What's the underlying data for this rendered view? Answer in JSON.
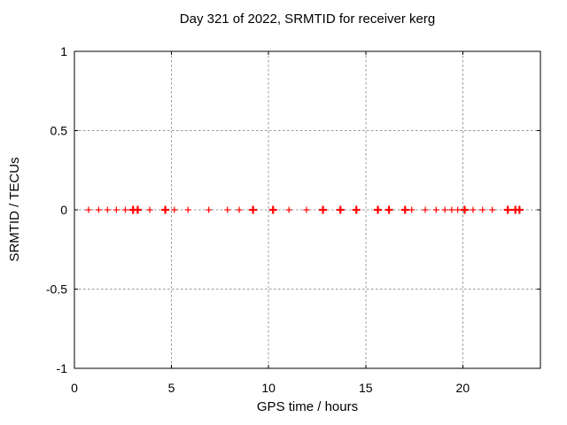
{
  "chart_data": {
    "type": "scatter",
    "title": "Day 321 of 2022, SRMTID for receiver kerg",
    "xlabel": "GPS time / hours",
    "ylabel": "SRMTID / TECUs",
    "xlim": [
      0,
      24
    ],
    "ylim": [
      -1,
      1
    ],
    "xticks": [
      0,
      5,
      10,
      15,
      20
    ],
    "xtick_labels": [
      "0",
      "5",
      "10",
      "15",
      "20"
    ],
    "yticks": [
      -1,
      -0.5,
      0,
      0.5,
      1
    ],
    "ytick_labels": [
      "-1",
      "-0.5",
      "0",
      "0.5",
      "1"
    ],
    "grid": true,
    "legend": "none",
    "marker": "plus",
    "points_format": [
      "gps_hour",
      "srmtid_tecus",
      "marker_weight"
    ],
    "points": [
      [
        0.73,
        0,
        1
      ],
      [
        1.25,
        0,
        1
      ],
      [
        1.7,
        0,
        1
      ],
      [
        2.16,
        0,
        1
      ],
      [
        2.62,
        0,
        1
      ],
      [
        3.02,
        0,
        2
      ],
      [
        3.26,
        0,
        2
      ],
      [
        3.88,
        0,
        1
      ],
      [
        4.68,
        0,
        2
      ],
      [
        5.15,
        0,
        1
      ],
      [
        5.85,
        0,
        1
      ],
      [
        6.92,
        0,
        1
      ],
      [
        7.88,
        0,
        1
      ],
      [
        8.49,
        0,
        1
      ],
      [
        9.2,
        0,
        2
      ],
      [
        10.23,
        0,
        2
      ],
      [
        11.05,
        0,
        1
      ],
      [
        11.95,
        0,
        1
      ],
      [
        12.8,
        0,
        2
      ],
      [
        13.7,
        0,
        2
      ],
      [
        14.52,
        0,
        2
      ],
      [
        15.63,
        0,
        2
      ],
      [
        16.2,
        0,
        2
      ],
      [
        17.03,
        0,
        2
      ],
      [
        17.37,
        0,
        1
      ],
      [
        18.07,
        0,
        1
      ],
      [
        18.63,
        0,
        1
      ],
      [
        19.08,
        0,
        1
      ],
      [
        19.43,
        0,
        1
      ],
      [
        19.74,
        0,
        1
      ],
      [
        20.1,
        0,
        2
      ],
      [
        20.53,
        0,
        1
      ],
      [
        21.02,
        0,
        1
      ],
      [
        21.52,
        0,
        1
      ],
      [
        22.32,
        0,
        2
      ],
      [
        22.71,
        0,
        2
      ],
      [
        22.92,
        0,
        2
      ]
    ],
    "colors": {
      "marker": "#ff0000",
      "grid": "#989898",
      "axis": "#000000",
      "background": "#ffffff"
    }
  }
}
